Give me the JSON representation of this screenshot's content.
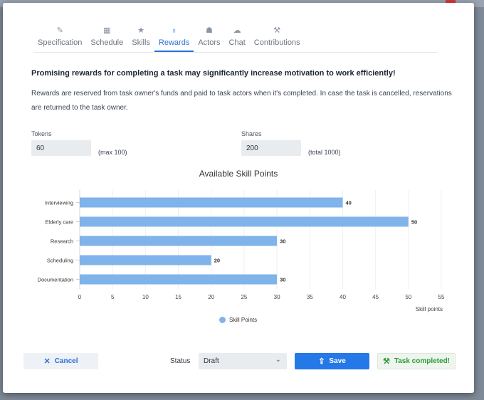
{
  "tabs": [
    {
      "label": "Specification",
      "icon": "pencil-icon",
      "glyph": "✎"
    },
    {
      "label": "Schedule",
      "icon": "calendar-icon",
      "glyph": "▦"
    },
    {
      "label": "Skills",
      "icon": "star-icon",
      "glyph": "★"
    },
    {
      "label": "Rewards",
      "icon": "award-icon",
      "glyph": "♁",
      "active": true
    },
    {
      "label": "Actors",
      "icon": "users-icon",
      "glyph": "☗"
    },
    {
      "label": "Chat",
      "icon": "chat-icon",
      "glyph": "☁"
    },
    {
      "label": "Contributions",
      "icon": "hammer-icon",
      "glyph": "⚒"
    }
  ],
  "headline": "Promising rewards for completing a task may significantly increase motivation to work efficiently!",
  "description": "Rewards are reserved from task owner's funds and paid to task actors when it's completed. In case the task is cancelled, reservations are returned to the task owner.",
  "tokens": {
    "label": "Tokens",
    "value": "60",
    "hint": "(max 100)"
  },
  "shares": {
    "label": "Shares",
    "value": "200",
    "hint": "(total 1000)"
  },
  "chart_data": {
    "type": "bar",
    "orientation": "horizontal",
    "title": "Available Skill Points",
    "categories": [
      "Interviewing",
      "Elderly care",
      "Research",
      "Scheduling",
      "Documentation"
    ],
    "series": [
      {
        "name": "Skill Points",
        "values": [
          40,
          50,
          30,
          20,
          30
        ]
      }
    ],
    "xlabel": "Skill points",
    "xlim": [
      0,
      55
    ],
    "xticks": [
      0,
      5,
      10,
      15,
      20,
      25,
      30,
      35,
      40,
      45,
      50,
      55
    ],
    "grid": true,
    "legend": "bottom",
    "bar_color": "#7fb3ea"
  },
  "footer": {
    "cancel_label": "Cancel",
    "status_label": "Status",
    "status_value": "Draft",
    "save_label": "Save",
    "done_label": "Task completed!"
  },
  "colors": {
    "accent": "#2478e8",
    "success": "#2e9a3a"
  }
}
